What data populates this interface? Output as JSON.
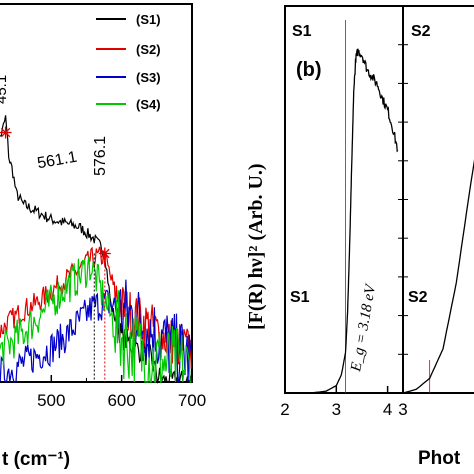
{
  "chart_data": [
    {
      "type": "line",
      "panel": "left",
      "xlabel": "t (cm⁻¹)",
      "xlim": [
        420,
        700
      ],
      "ylim": [
        0,
        1
      ],
      "x_ticks": [
        500,
        600,
        700
      ],
      "legend": {
        "placement": "top-right",
        "entries": [
          "(S1)",
          "(S2)",
          "(S3)",
          "(S4)"
        ]
      },
      "annotations": [
        {
          "label": "561.1",
          "x": 561.1,
          "y": 0.34
        },
        {
          "label": "576.1",
          "x": 576.1,
          "y": 0.34
        }
      ],
      "cropped_label": "45.1",
      "series": [
        {
          "name": "(S1)",
          "color": "#000000",
          "x": [
            420,
            430,
            435,
            440,
            445,
            450,
            460,
            480,
            500,
            520,
            540,
            560,
            570,
            576,
            585,
            600,
            620,
            640,
            650,
            660,
            680,
            700
          ],
          "y": [
            0.62,
            0.66,
            0.7,
            0.59,
            0.56,
            0.5,
            0.47,
            0.45,
            0.43,
            0.42,
            0.41,
            0.38,
            0.36,
            0.34,
            0.2,
            0.12,
            0.09,
            0.07,
            0.02,
            0.0,
            0.0,
            0.0
          ]
        },
        {
          "name": "(S2)",
          "color": "#e00000",
          "x": [
            420,
            440,
            460,
            480,
            500,
            520,
            540,
            561,
            576,
            590,
            600,
            620,
            640,
            660,
            680,
            700
          ],
          "y": [
            0.12,
            0.16,
            0.19,
            0.21,
            0.24,
            0.27,
            0.3,
            0.33,
            0.33,
            0.24,
            0.2,
            0.17,
            0.15,
            0.12,
            0.1,
            0.08
          ]
        },
        {
          "name": "(S3)",
          "color": "#0000c8",
          "x": [
            420,
            440,
            460,
            480,
            500,
            520,
            540,
            560,
            580,
            600,
            620,
            640,
            660,
            680,
            700
          ],
          "y": [
            0.02,
            0.03,
            0.05,
            0.07,
            0.09,
            0.12,
            0.16,
            0.2,
            0.21,
            0.19,
            0.17,
            0.14,
            0.11,
            0.08,
            0.06
          ]
        },
        {
          "name": "(S4)",
          "color": "#00c800",
          "x": [
            420,
            440,
            460,
            480,
            500,
            520,
            540,
            555,
            565,
            575,
            590,
            600,
            620,
            640,
            660,
            680,
            700
          ],
          "y": [
            0.07,
            0.1,
            0.13,
            0.17,
            0.21,
            0.25,
            0.28,
            0.31,
            0.27,
            0.22,
            0.15,
            0.12,
            0.09,
            0.06,
            0.05,
            0.04,
            0.03
          ]
        }
      ]
    },
    {
      "type": "line",
      "panel": "right",
      "panel_label": "(b)",
      "ylabel": "[F(R) hν]² (Arb. U.)",
      "xlabel": "Phot",
      "subpanels": [
        {
          "label": "S1",
          "xlim": [
            2,
            4.3
          ],
          "ylim": [
            0,
            1
          ],
          "x_ticks": [
            2,
            3,
            4
          ],
          "bandgap_label": "E_g = 3.18 eV",
          "bandgap_value": 3.18,
          "x": [
            2.0,
            2.5,
            2.8,
            3.0,
            3.1,
            3.18,
            3.22,
            3.26,
            3.3,
            3.34,
            3.38,
            3.42,
            3.5,
            3.6,
            3.7,
            3.8,
            3.9,
            4.0,
            4.1,
            4.2
          ],
          "y": [
            0.0,
            0.0,
            0.005,
            0.02,
            0.05,
            0.11,
            0.22,
            0.4,
            0.62,
            0.82,
            0.91,
            0.93,
            0.92,
            0.88,
            0.86,
            0.84,
            0.8,
            0.77,
            0.72,
            0.66
          ]
        },
        {
          "label": "S2",
          "xlim": [
            3,
            3.6
          ],
          "ylim": [
            0,
            1
          ],
          "x_ticks": [
            3
          ],
          "bandgap_value": 3.2,
          "x": [
            3.0,
            3.1,
            3.2,
            3.3,
            3.4,
            3.5,
            3.6
          ],
          "y": [
            0.0,
            0.01,
            0.04,
            0.12,
            0.3,
            0.55,
            0.78
          ]
        }
      ]
    }
  ]
}
